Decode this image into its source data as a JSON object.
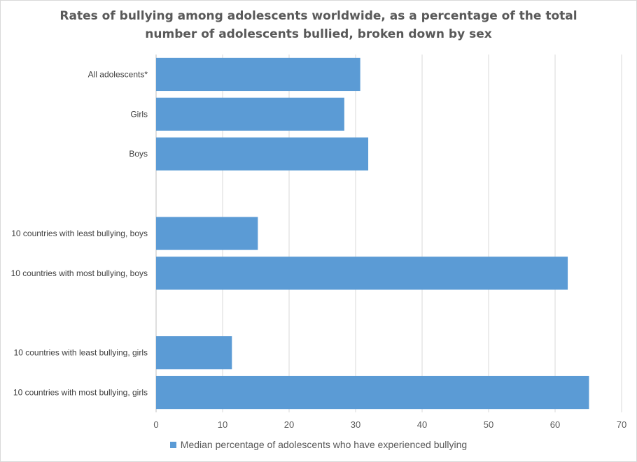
{
  "chart_data": {
    "type": "bar",
    "orientation": "horizontal",
    "title": [
      "Rates of bullying among adolescents worldwide, as a percentage of the total",
      "number of adolescents bullied, broken down by sex"
    ],
    "categories": [
      "All adolescents*",
      "Girls",
      "Boys",
      "",
      "10 countries with least bullying, boys",
      "10 countries with most bullying, boys",
      "",
      "10 countries with least bullying, girls",
      "10 countries with most bullying, girls"
    ],
    "series": [
      {
        "name": "Median percentage of adolescents who have experienced bullying",
        "values": [
          30.7,
          28.3,
          31.9,
          null,
          15.3,
          61.9,
          null,
          11.4,
          65.1
        ]
      }
    ],
    "xlim": [
      0,
      70
    ],
    "xticks": [
      0,
      10,
      20,
      30,
      40,
      50,
      60,
      70
    ],
    "grid": true,
    "legend_position": "bottom",
    "bar_color": "#5b9bd5"
  }
}
